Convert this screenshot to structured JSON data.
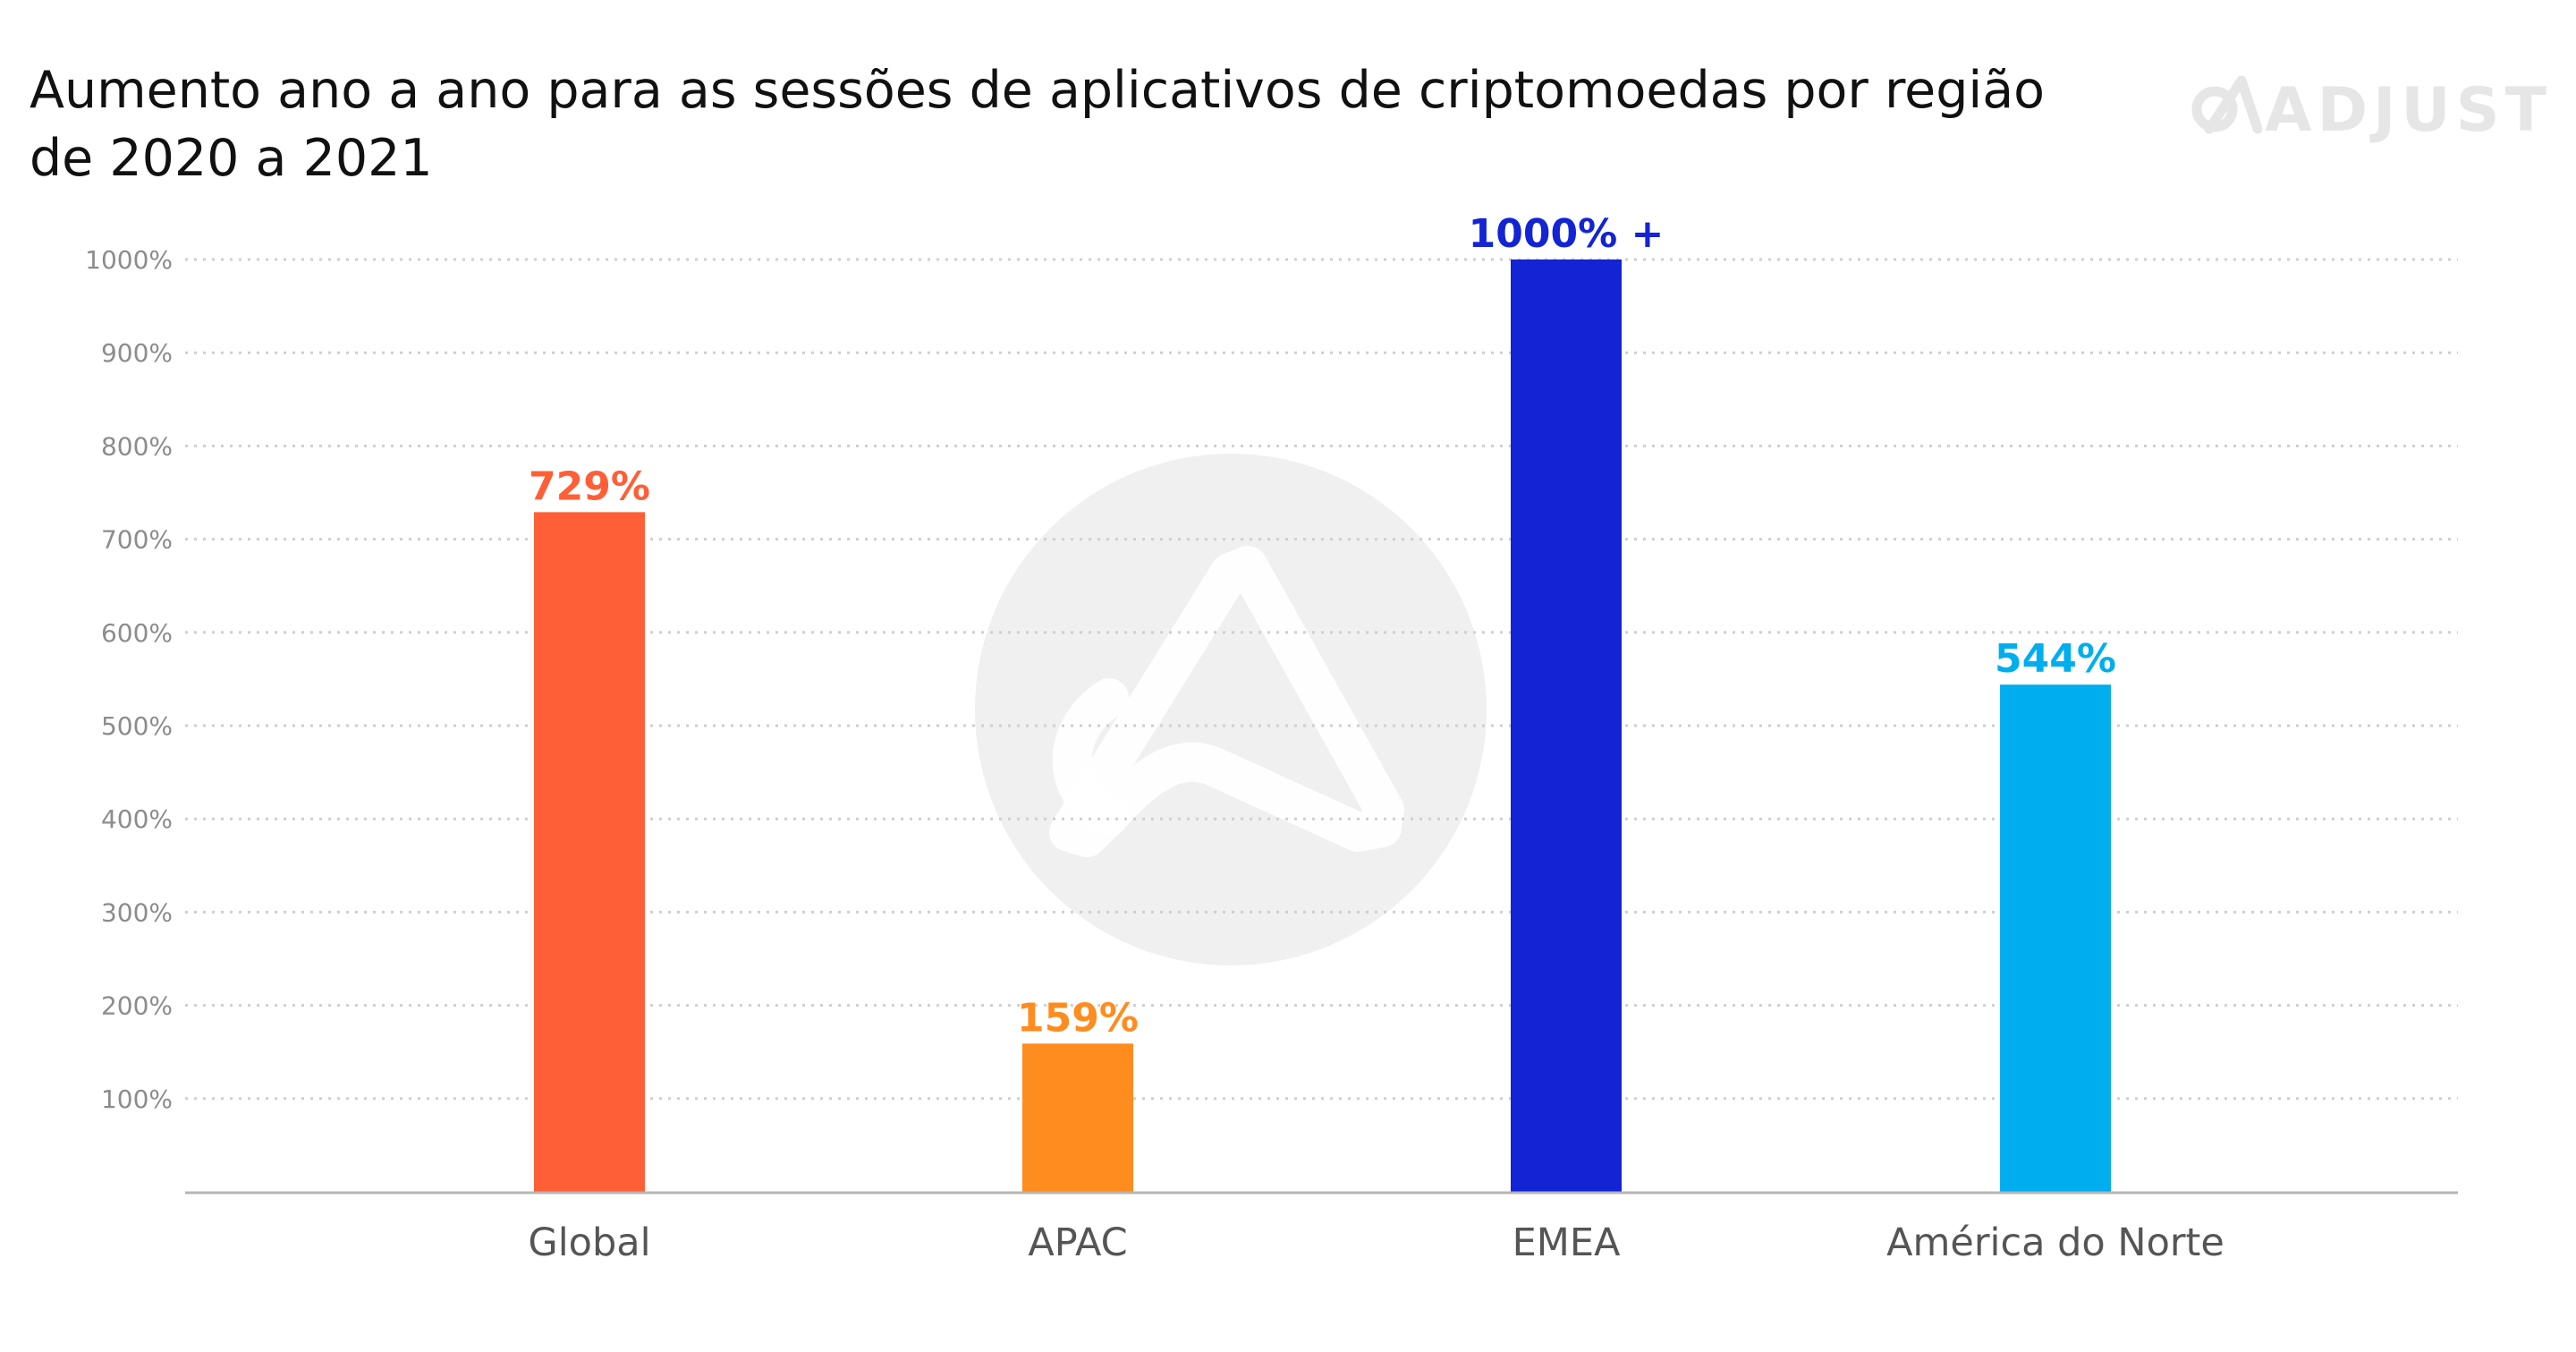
{
  "title": {
    "line1": "Aumento ano a ano para as sessões de aplicativos de criptomoedas por região",
    "line2": "de 2020 a 2021"
  },
  "brand": {
    "name": "ADJUST",
    "icon": "adjust-logo-icon"
  },
  "colors": {
    "background": "#ffffff",
    "gridline": "#cfcfcf",
    "baseline": "#b5b5b5",
    "watermark": "#f0f0f0"
  },
  "chart_data": {
    "type": "bar",
    "title": "Aumento ano a ano para as sessões de aplicativos de criptomoedas por região de 2020 a 2021",
    "categories": [
      "Global",
      "APAC",
      "EMEA",
      "América do Norte"
    ],
    "values": [
      729,
      159,
      1000,
      544
    ],
    "value_labels": [
      "729%",
      "159%",
      "1000% +",
      "544%"
    ],
    "bar_colors": [
      "#ff5f36",
      "#ff8c1f",
      "#1224d3",
      "#00aeef"
    ],
    "yticks": [
      100,
      200,
      300,
      400,
      500,
      600,
      700,
      800,
      900,
      1000
    ],
    "ytick_labels": [
      "100%",
      "200%",
      "300%",
      "400%",
      "500%",
      "600%",
      "700%",
      "800%",
      "900%",
      "1000%"
    ],
    "ylim": [
      0,
      1000
    ],
    "grid": true,
    "grid_style": "dotted",
    "legend": "none",
    "xlabel": "",
    "ylabel": ""
  }
}
